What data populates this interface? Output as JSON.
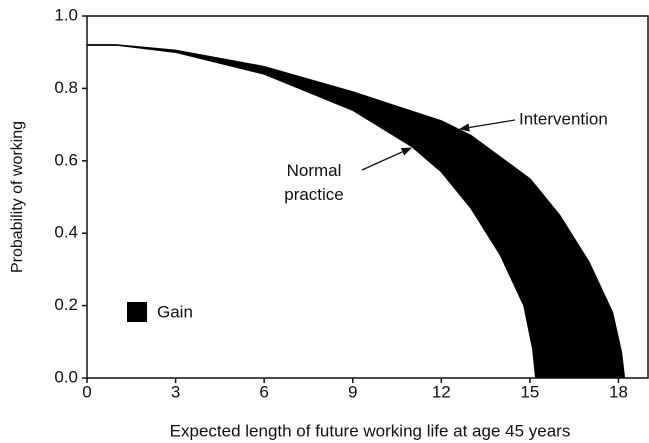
{
  "chart_data": {
    "type": "area-between",
    "xlabel": "Expected length of future working life at age 45 years",
    "ylabel": "Probability of working",
    "xlim": [
      0,
      19
    ],
    "ylim": [
      0,
      1
    ],
    "xticks": [
      0,
      3,
      6,
      9,
      12,
      15,
      18
    ],
    "yticks": [
      {
        "value": 0,
        "label": "0.0"
      },
      0.2,
      0.4,
      0.6,
      0.8,
      {
        "value": 1,
        "label": "1.0"
      }
    ],
    "color": "#000000",
    "legend": {
      "label": "Gain",
      "position": "lower left"
    },
    "series": [
      {
        "name": "Intervention",
        "x": [
          0,
          1,
          3,
          6,
          9,
          12,
          13,
          15,
          16,
          17,
          17.8,
          18.1,
          18.2
        ],
        "values": [
          0.92,
          0.92,
          0.905,
          0.86,
          0.79,
          0.71,
          0.67,
          0.55,
          0.45,
          0.32,
          0.18,
          0.07,
          0
        ]
      },
      {
        "name": "Normal practice",
        "x": [
          0,
          1,
          3,
          6,
          9,
          11,
          12,
          13,
          14,
          14.8,
          15.1,
          15.2
        ],
        "values": [
          0.92,
          0.92,
          0.9,
          0.84,
          0.74,
          0.64,
          0.57,
          0.47,
          0.34,
          0.2,
          0.08,
          0
        ]
      }
    ]
  }
}
